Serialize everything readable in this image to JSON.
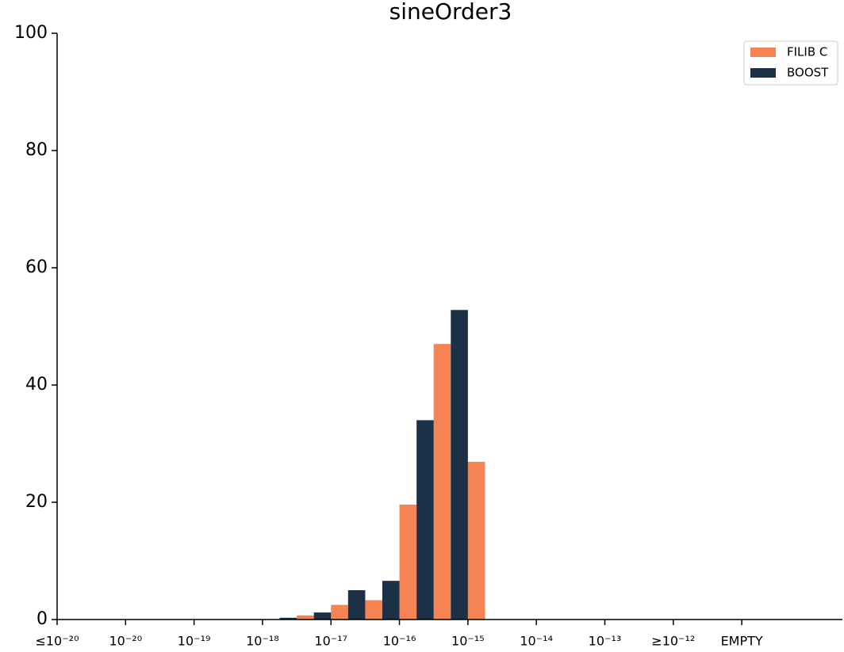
{
  "chart_data": {
    "type": "bar",
    "title": "sineOrder3",
    "x": [
      3.25,
      3.75,
      4.25,
      4.75,
      5.25,
      5.75,
      6.25
    ],
    "series": [
      {
        "name": "FILIB C",
        "color": "#f58354",
        "values": [
          0,
          0.7,
          2.5,
          3.3,
          19.6,
          47,
          26.9
        ]
      },
      {
        "name": "BOOST",
        "color": "#1c3048",
        "values": [
          0.3,
          1.2,
          5.0,
          6.6,
          34,
          52.8,
          0
        ]
      }
    ],
    "xlim": [
      0,
      11.47
    ],
    "xticks": [
      {
        "value": 0,
        "label": "≤10⁻²⁰"
      },
      {
        "value": 1,
        "label": "10⁻²⁰"
      },
      {
        "value": 2,
        "label": "10⁻¹⁹"
      },
      {
        "value": 3,
        "label": "10⁻¹⁸"
      },
      {
        "value": 4,
        "label": "10⁻¹⁷"
      },
      {
        "value": 5,
        "label": "10⁻¹⁶"
      },
      {
        "value": 6,
        "label": "10⁻¹⁵"
      },
      {
        "value": 7,
        "label": "10⁻¹⁴"
      },
      {
        "value": 8,
        "label": "10⁻¹³"
      },
      {
        "value": 9,
        "label": "≥10⁻¹²"
      },
      {
        "value": 10,
        "label": "EMPTY"
      }
    ],
    "ylim": [
      0,
      100
    ],
    "yticks": [
      0,
      20,
      40,
      60,
      80,
      100
    ],
    "legend": "upper right"
  }
}
